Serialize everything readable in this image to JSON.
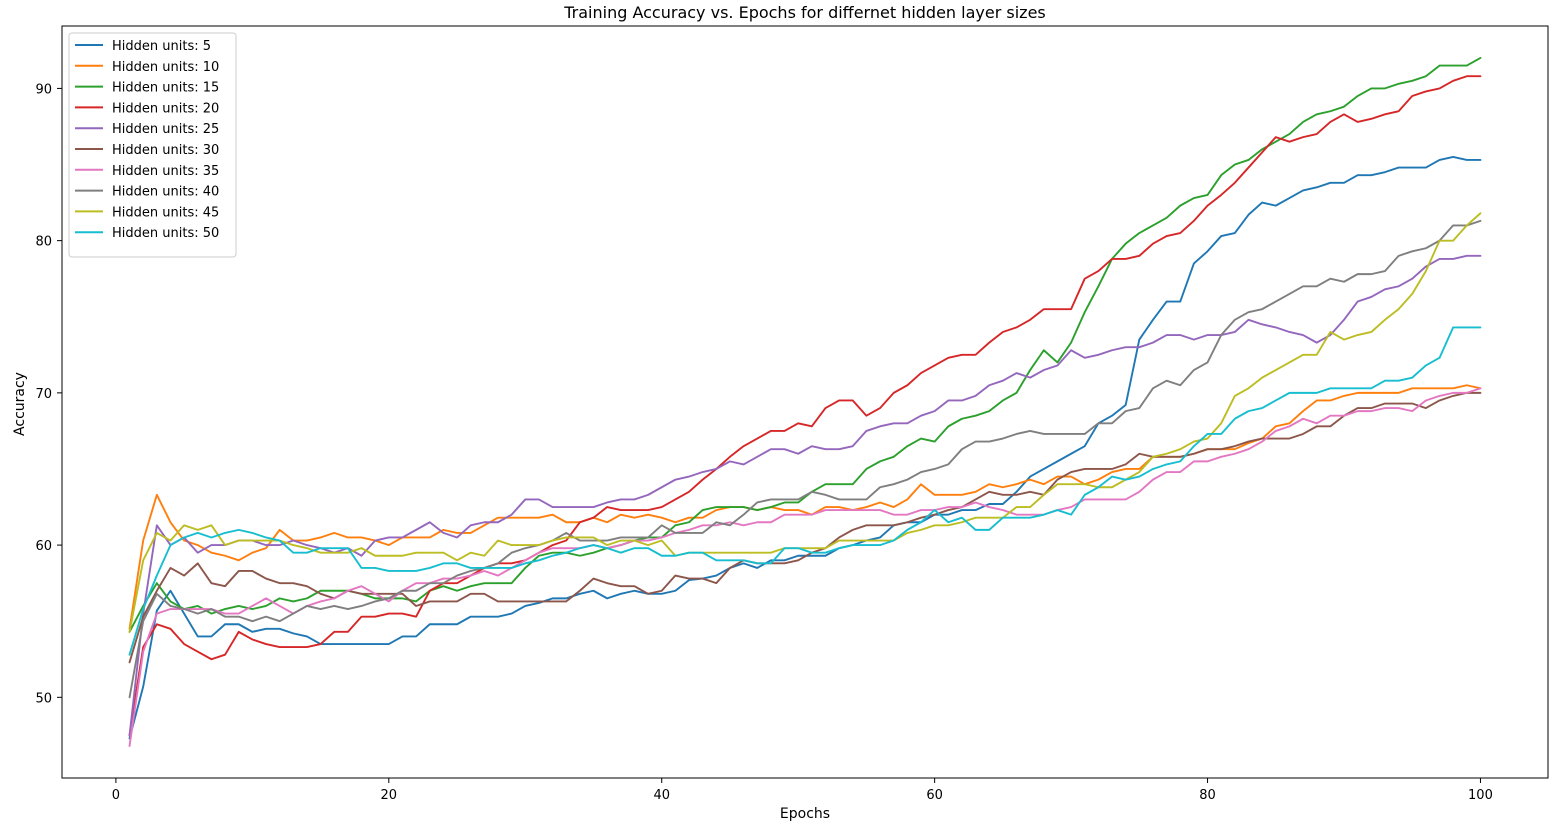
{
  "chart_data": {
    "type": "line",
    "title": "Training Accuracy vs. Epochs for differnet hidden layer sizes",
    "xlabel": "Epochs",
    "ylabel": "Accuracy",
    "xlim": [
      -3.95,
      104.95
    ],
    "ylim": [
      44.7,
      94.1
    ],
    "xticks": [
      0,
      20,
      40,
      60,
      80,
      100
    ],
    "yticks": [
      50,
      60,
      70,
      80,
      90
    ],
    "grid": false,
    "legend_position": "top-left",
    "x": [
      1,
      2,
      3,
      4,
      5,
      6,
      7,
      8,
      9,
      10,
      11,
      12,
      13,
      14,
      15,
      16,
      17,
      18,
      19,
      20,
      21,
      22,
      23,
      24,
      25,
      26,
      27,
      28,
      29,
      30,
      31,
      32,
      33,
      34,
      35,
      36,
      37,
      38,
      39,
      40,
      41,
      42,
      43,
      44,
      45,
      46,
      47,
      48,
      49,
      50,
      51,
      52,
      53,
      54,
      55,
      56,
      57,
      58,
      59,
      60,
      61,
      62,
      63,
      64,
      65,
      66,
      67,
      68,
      69,
      70,
      71,
      72,
      73,
      74,
      75,
      76,
      77,
      78,
      79,
      80,
      81,
      82,
      83,
      84,
      85,
      86,
      87,
      88,
      89,
      90,
      91,
      92,
      93,
      94,
      95,
      96,
      97,
      98,
      99,
      100
    ],
    "series": [
      {
        "name": "Hidden units: 5",
        "color": "#1f77b4",
        "values": [
          47.3,
          50.7,
          55.7,
          57.0,
          55.5,
          54.0,
          54.0,
          54.8,
          54.8,
          54.3,
          54.5,
          54.5,
          54.2,
          54.0,
          53.5,
          53.5,
          53.5,
          53.5,
          53.5,
          53.5,
          54.0,
          54.0,
          54.8,
          54.8,
          54.8,
          55.3,
          55.3,
          55.3,
          55.5,
          56.0,
          56.2,
          56.5,
          56.5,
          56.8,
          57.0,
          56.5,
          56.8,
          57.0,
          56.8,
          56.8,
          57.0,
          57.7,
          57.8,
          58.0,
          58.5,
          58.8,
          58.5,
          59.0,
          59.0,
          59.3,
          59.3,
          59.3,
          59.8,
          60.0,
          60.3,
          60.5,
          61.3,
          61.5,
          61.5,
          62.0,
          62.0,
          62.3,
          62.3,
          62.7,
          62.7,
          63.5,
          64.5,
          65.0,
          65.5,
          66.0,
          66.5,
          68.0,
          68.5,
          69.2,
          73.5,
          74.8,
          76.0,
          76.0,
          78.5,
          79.3,
          80.3,
          80.5,
          81.7,
          82.5,
          82.3,
          82.8,
          83.3,
          83.5,
          83.8,
          83.8,
          84.3,
          84.3,
          84.5,
          84.8,
          84.8,
          84.8,
          85.3,
          85.5,
          85.3,
          85.3
        ]
      },
      {
        "name": "Hidden units: 10",
        "color": "#ff7f0e",
        "values": [
          54.5,
          60.3,
          63.3,
          61.5,
          60.3,
          60.0,
          59.5,
          59.3,
          59.0,
          59.5,
          59.8,
          61.0,
          60.3,
          60.3,
          60.5,
          60.8,
          60.5,
          60.5,
          60.3,
          60.0,
          60.5,
          60.5,
          60.5,
          61.0,
          60.8,
          60.8,
          61.3,
          61.8,
          61.8,
          61.8,
          61.8,
          62.0,
          61.5,
          61.5,
          61.8,
          61.5,
          62.0,
          61.8,
          62.0,
          61.8,
          61.5,
          61.8,
          61.8,
          62.3,
          62.5,
          62.5,
          62.3,
          62.5,
          62.3,
          62.3,
          62.0,
          62.5,
          62.5,
          62.3,
          62.5,
          62.8,
          62.5,
          63.0,
          64.0,
          63.3,
          63.3,
          63.3,
          63.5,
          64.0,
          63.8,
          64.0,
          64.3,
          64.0,
          64.5,
          64.5,
          64.0,
          64.3,
          64.8,
          65.0,
          65.0,
          65.8,
          65.8,
          65.8,
          66.0,
          66.3,
          66.3,
          66.3,
          66.7,
          67.0,
          67.8,
          68.0,
          68.8,
          69.5,
          69.5,
          69.8,
          70.0,
          70.0,
          70.0,
          70.0,
          70.3,
          70.3,
          70.3,
          70.3,
          70.5,
          70.3
        ]
      },
      {
        "name": "Hidden units: 15",
        "color": "#2ca02c",
        "values": [
          54.3,
          56.0,
          57.5,
          56.3,
          55.8,
          56.0,
          55.5,
          55.8,
          56.0,
          55.8,
          56.0,
          56.5,
          56.3,
          56.5,
          57.0,
          57.0,
          57.0,
          56.8,
          56.5,
          56.5,
          56.5,
          56.3,
          57.0,
          57.3,
          57.0,
          57.3,
          57.5,
          57.5,
          57.5,
          58.5,
          59.3,
          59.5,
          59.5,
          59.3,
          59.5,
          59.8,
          60.0,
          60.3,
          60.5,
          60.5,
          61.3,
          61.5,
          62.3,
          62.5,
          62.5,
          62.5,
          62.3,
          62.5,
          62.8,
          62.8,
          63.5,
          64.0,
          64.0,
          64.0,
          65.0,
          65.5,
          65.8,
          66.5,
          67.0,
          66.8,
          67.8,
          68.3,
          68.5,
          68.8,
          69.5,
          70.0,
          71.5,
          72.8,
          72.0,
          73.3,
          75.3,
          77.0,
          78.8,
          79.8,
          80.5,
          81.0,
          81.5,
          82.3,
          82.8,
          83.0,
          84.3,
          85.0,
          85.3,
          86.0,
          86.5,
          87.0,
          87.8,
          88.3,
          88.5,
          88.8,
          89.5,
          90.0,
          90.0,
          90.3,
          90.5,
          90.8,
          91.5,
          91.5,
          91.5,
          92.0
        ]
      },
      {
        "name": "Hidden units: 20",
        "color": "#d62728",
        "values": [
          47.5,
          53.3,
          54.8,
          54.5,
          53.5,
          53.0,
          52.5,
          52.8,
          54.3,
          53.8,
          53.5,
          53.3,
          53.3,
          53.3,
          53.5,
          54.3,
          54.3,
          55.3,
          55.3,
          55.5,
          55.5,
          55.3,
          57.0,
          57.5,
          57.5,
          58.0,
          58.5,
          58.8,
          58.8,
          59.0,
          59.5,
          60.0,
          60.3,
          61.5,
          61.8,
          62.5,
          62.3,
          62.3,
          62.3,
          62.5,
          63.0,
          63.5,
          64.3,
          65.0,
          65.8,
          66.5,
          67.0,
          67.5,
          67.5,
          68.0,
          67.8,
          69.0,
          69.5,
          69.5,
          68.5,
          69.0,
          70.0,
          70.5,
          71.3,
          71.8,
          72.3,
          72.5,
          72.5,
          73.3,
          74.0,
          74.3,
          74.8,
          75.5,
          75.5,
          75.5,
          77.5,
          78.0,
          78.8,
          78.8,
          79.0,
          79.8,
          80.3,
          80.5,
          81.3,
          82.3,
          83.0,
          83.8,
          84.8,
          85.8,
          86.8,
          86.5,
          86.8,
          87.0,
          87.8,
          88.3,
          87.8,
          88.0,
          88.3,
          88.5,
          89.5,
          89.8,
          90.0,
          90.5,
          90.8,
          90.8
        ]
      },
      {
        "name": "Hidden units: 25",
        "color": "#9467bd",
        "values": [
          47.5,
          55.5,
          61.3,
          60.0,
          60.5,
          59.5,
          60.0,
          60.0,
          60.3,
          60.3,
          60.0,
          60.0,
          60.3,
          60.0,
          59.8,
          59.5,
          59.8,
          59.3,
          60.3,
          60.5,
          60.5,
          61.0,
          61.5,
          60.8,
          60.5,
          61.3,
          61.5,
          61.5,
          62.0,
          63.0,
          63.0,
          62.5,
          62.5,
          62.5,
          62.5,
          62.8,
          63.0,
          63.0,
          63.3,
          63.8,
          64.3,
          64.5,
          64.8,
          65.0,
          65.5,
          65.3,
          65.8,
          66.3,
          66.3,
          66.0,
          66.5,
          66.3,
          66.3,
          66.5,
          67.5,
          67.8,
          68.0,
          68.0,
          68.5,
          68.8,
          69.5,
          69.5,
          69.8,
          70.5,
          70.8,
          71.3,
          71.0,
          71.5,
          71.8,
          72.8,
          72.3,
          72.5,
          72.8,
          73.0,
          73.0,
          73.3,
          73.8,
          73.8,
          73.5,
          73.8,
          73.8,
          74.0,
          74.8,
          74.5,
          74.3,
          74.0,
          73.8,
          73.3,
          73.8,
          74.8,
          76.0,
          76.3,
          76.8,
          77.0,
          77.5,
          78.3,
          78.8,
          78.8,
          79.0,
          79.0
        ]
      },
      {
        "name": "Hidden units: 30",
        "color": "#8c564b",
        "values": [
          52.3,
          55.3,
          57.0,
          58.5,
          58.0,
          58.8,
          57.5,
          57.3,
          58.3,
          58.3,
          57.8,
          57.5,
          57.5,
          57.3,
          56.8,
          56.5,
          57.0,
          56.8,
          56.8,
          56.8,
          56.8,
          56.0,
          56.3,
          56.3,
          56.3,
          56.8,
          56.8,
          56.3,
          56.3,
          56.3,
          56.3,
          56.3,
          56.3,
          57.0,
          57.8,
          57.5,
          57.3,
          57.3,
          56.8,
          57.0,
          58.0,
          57.8,
          57.8,
          57.5,
          58.5,
          59.0,
          58.8,
          58.8,
          58.8,
          59.0,
          59.5,
          59.8,
          60.5,
          61.0,
          61.3,
          61.3,
          61.3,
          61.5,
          61.8,
          62.0,
          62.3,
          62.5,
          63.0,
          63.5,
          63.3,
          63.3,
          63.5,
          63.3,
          64.3,
          64.8,
          65.0,
          65.0,
          65.0,
          65.3,
          66.0,
          65.8,
          65.8,
          65.8,
          66.0,
          66.3,
          66.3,
          66.5,
          66.8,
          67.0,
          67.0,
          67.0,
          67.3,
          67.8,
          67.8,
          68.5,
          69.0,
          69.0,
          69.3,
          69.3,
          69.3,
          69.0,
          69.5,
          69.8,
          70.0,
          70.0
        ]
      },
      {
        "name": "Hidden units: 35",
        "color": "#e377c2",
        "values": [
          46.8,
          53.0,
          55.5,
          55.8,
          55.8,
          55.8,
          55.8,
          55.5,
          55.5,
          56.0,
          56.5,
          56.0,
          55.5,
          56.0,
          56.3,
          56.5,
          57.0,
          57.3,
          56.8,
          56.3,
          57.0,
          57.5,
          57.5,
          57.8,
          57.8,
          58.0,
          58.3,
          58.0,
          58.5,
          59.0,
          59.5,
          59.8,
          59.8,
          59.8,
          60.0,
          59.8,
          60.0,
          60.3,
          60.3,
          60.5,
          60.8,
          61.0,
          61.3,
          61.3,
          61.5,
          61.3,
          61.5,
          61.5,
          62.0,
          62.0,
          62.0,
          62.3,
          62.3,
          62.3,
          62.3,
          62.3,
          62.0,
          62.0,
          62.3,
          62.3,
          62.5,
          62.5,
          62.8,
          62.5,
          62.3,
          62.0,
          62.0,
          62.0,
          62.3,
          62.5,
          63.0,
          63.0,
          63.0,
          63.0,
          63.5,
          64.3,
          64.8,
          64.8,
          65.5,
          65.5,
          65.8,
          66.0,
          66.3,
          66.8,
          67.5,
          67.8,
          68.3,
          68.0,
          68.5,
          68.5,
          68.8,
          68.8,
          69.0,
          69.0,
          68.8,
          69.5,
          69.8,
          70.0,
          70.0,
          70.3
        ]
      },
      {
        "name": "Hidden units: 40",
        "color": "#7f7f7f",
        "values": [
          50.0,
          55.0,
          56.8,
          56.0,
          55.8,
          55.5,
          55.8,
          55.3,
          55.3,
          55.0,
          55.3,
          55.0,
          55.5,
          56.0,
          55.8,
          56.0,
          55.8,
          56.0,
          56.3,
          56.5,
          57.0,
          57.0,
          57.5,
          57.5,
          58.0,
          58.3,
          58.5,
          58.8,
          59.5,
          59.8,
          60.0,
          60.3,
          60.8,
          60.3,
          60.3,
          60.3,
          60.5,
          60.5,
          60.5,
          61.3,
          60.8,
          60.8,
          60.8,
          61.5,
          61.3,
          62.0,
          62.8,
          63.0,
          63.0,
          63.0,
          63.5,
          63.3,
          63.0,
          63.0,
          63.0,
          63.8,
          64.0,
          64.3,
          64.8,
          65.0,
          65.3,
          66.3,
          66.8,
          66.8,
          67.0,
          67.3,
          67.5,
          67.3,
          67.3,
          67.3,
          67.3,
          68.0,
          68.0,
          68.8,
          69.0,
          70.3,
          70.8,
          70.5,
          71.5,
          72.0,
          73.8,
          74.8,
          75.3,
          75.5,
          76.0,
          76.5,
          77.0,
          77.0,
          77.5,
          77.3,
          77.8,
          77.8,
          78.0,
          79.0,
          79.3,
          79.5,
          80.0,
          81.0,
          81.0,
          81.3
        ]
      },
      {
        "name": "Hidden units: 45",
        "color": "#bcbd22",
        "values": [
          54.3,
          59.0,
          60.8,
          60.3,
          61.3,
          61.0,
          61.3,
          60.0,
          60.3,
          60.3,
          60.3,
          60.3,
          60.0,
          59.8,
          59.5,
          59.5,
          59.5,
          59.8,
          59.3,
          59.3,
          59.3,
          59.5,
          59.5,
          59.5,
          59.0,
          59.5,
          59.3,
          60.3,
          60.0,
          60.0,
          60.0,
          60.3,
          60.5,
          60.5,
          60.5,
          60.0,
          60.3,
          60.3,
          60.0,
          60.3,
          59.3,
          59.5,
          59.5,
          59.5,
          59.5,
          59.5,
          59.5,
          59.5,
          59.8,
          59.8,
          59.8,
          59.8,
          60.3,
          60.3,
          60.3,
          60.3,
          60.3,
          60.8,
          61.0,
          61.3,
          61.3,
          61.5,
          61.8,
          61.8,
          61.8,
          62.5,
          62.5,
          63.3,
          64.0,
          64.0,
          64.0,
          63.8,
          63.8,
          64.3,
          64.8,
          65.8,
          66.0,
          66.3,
          66.8,
          67.0,
          68.0,
          69.8,
          70.3,
          71.0,
          71.5,
          72.0,
          72.5,
          72.5,
          74.0,
          73.5,
          73.8,
          74.0,
          74.8,
          75.5,
          76.5,
          78.0,
          80.0,
          80.0,
          81.0,
          81.8
        ]
      },
      {
        "name": "Hidden units: 50",
        "color": "#17becf",
        "values": [
          52.8,
          55.8,
          58.0,
          60.0,
          60.5,
          60.8,
          60.5,
          60.8,
          61.0,
          60.8,
          60.5,
          60.3,
          59.5,
          59.5,
          59.8,
          59.8,
          59.8,
          58.5,
          58.5,
          58.3,
          58.3,
          58.3,
          58.5,
          58.8,
          58.8,
          58.5,
          58.5,
          58.5,
          58.5,
          58.8,
          59.0,
          59.3,
          59.5,
          59.8,
          60.0,
          59.8,
          59.5,
          59.8,
          59.8,
          59.3,
          59.3,
          59.5,
          59.5,
          59.0,
          59.0,
          59.0,
          58.8,
          58.8,
          59.8,
          59.8,
          59.5,
          59.5,
          59.8,
          60.0,
          60.0,
          60.0,
          60.3,
          61.0,
          61.5,
          62.3,
          61.5,
          61.8,
          61.0,
          61.0,
          61.8,
          61.8,
          61.8,
          62.0,
          62.3,
          62.0,
          63.3,
          63.8,
          64.5,
          64.3,
          64.5,
          65.0,
          65.3,
          65.5,
          66.5,
          67.3,
          67.3,
          68.3,
          68.8,
          69.0,
          69.5,
          70.0,
          70.0,
          70.0,
          70.3,
          70.3,
          70.3,
          70.3,
          70.8,
          70.8,
          71.0,
          71.8,
          72.3,
          74.3,
          74.3,
          74.3
        ]
      }
    ]
  }
}
